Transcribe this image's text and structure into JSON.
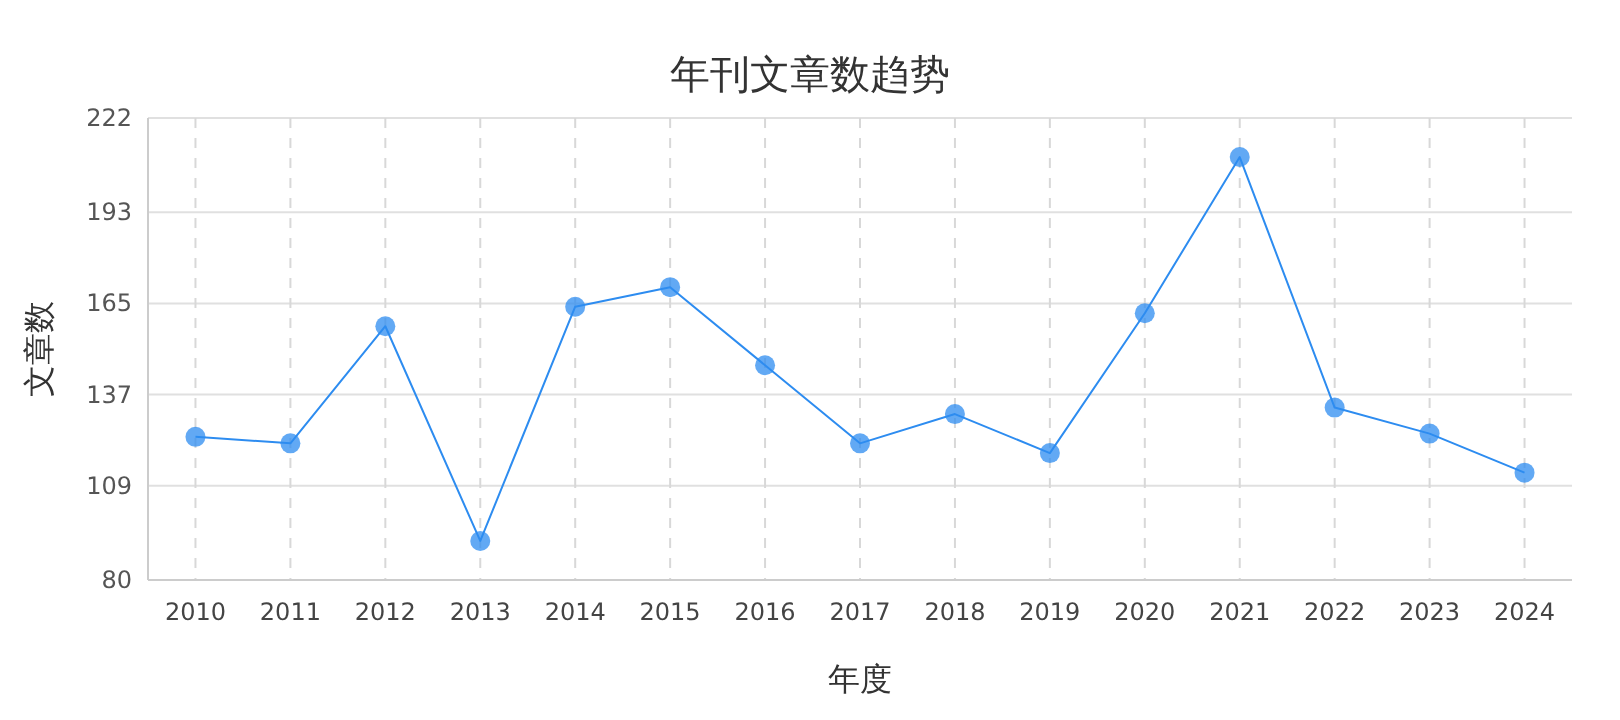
{
  "chart_data": {
    "type": "line",
    "title": "年刊文章数趋势",
    "xlabel": "年度",
    "ylabel": "文章数",
    "categories": [
      "2010",
      "2011",
      "2012",
      "2013",
      "2014",
      "2015",
      "2016",
      "2017",
      "2018",
      "2019",
      "2020",
      "2021",
      "2022",
      "2023",
      "2024"
    ],
    "series": [
      {
        "color": "#2d8cf0",
        "values": [
          124,
          122,
          158,
          92,
          164,
          170,
          146,
          122,
          131,
          119,
          162,
          210,
          133,
          125,
          113
        ]
      }
    ],
    "ylim": [
      80,
      222
    ],
    "yticks": [
      80,
      109,
      137,
      165,
      193,
      222
    ],
    "grid": true,
    "marker": "circle",
    "line_style": "solid"
  }
}
